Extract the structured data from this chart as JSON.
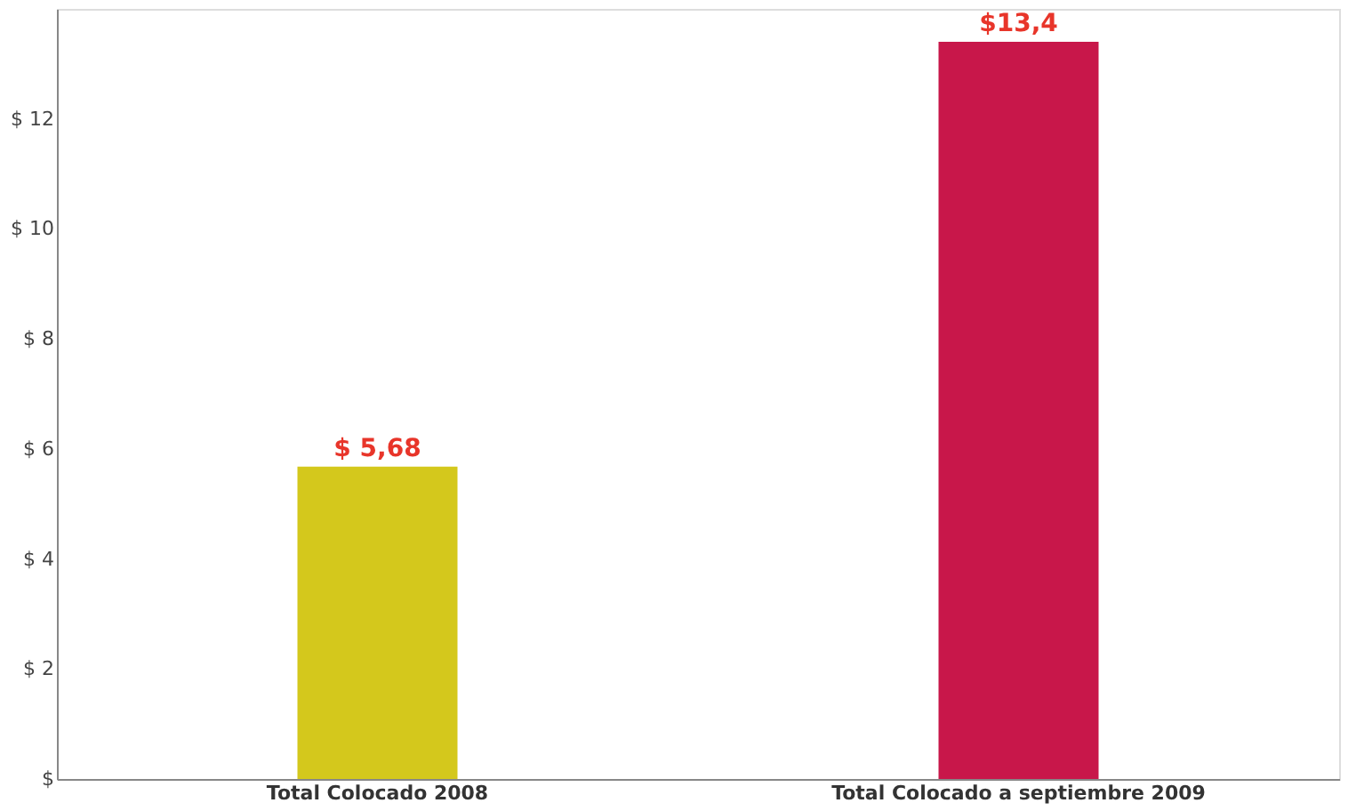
{
  "chart_data": {
    "type": "bar",
    "categories": [
      "Total Colocado 2008",
      "Total Colocado a septiembre 2009"
    ],
    "values": [
      5.68,
      13.4
    ],
    "colors": [
      "#d4c81c",
      "#c8174a"
    ],
    "value_labels": [
      "$ 5,68",
      "$13,4"
    ],
    "ylim": [
      0,
      14
    ],
    "yticks": [
      {
        "value": 0,
        "label": "$"
      },
      {
        "value": 2,
        "label": "$ 2"
      },
      {
        "value": 4,
        "label": "$ 4"
      },
      {
        "value": 6,
        "label": "$ 6"
      },
      {
        "value": 8,
        "label": "$ 8"
      },
      {
        "value": 10,
        "label": "$ 10"
      },
      {
        "value": 12,
        "label": "$ 12"
      }
    ],
    "grid": false
  }
}
